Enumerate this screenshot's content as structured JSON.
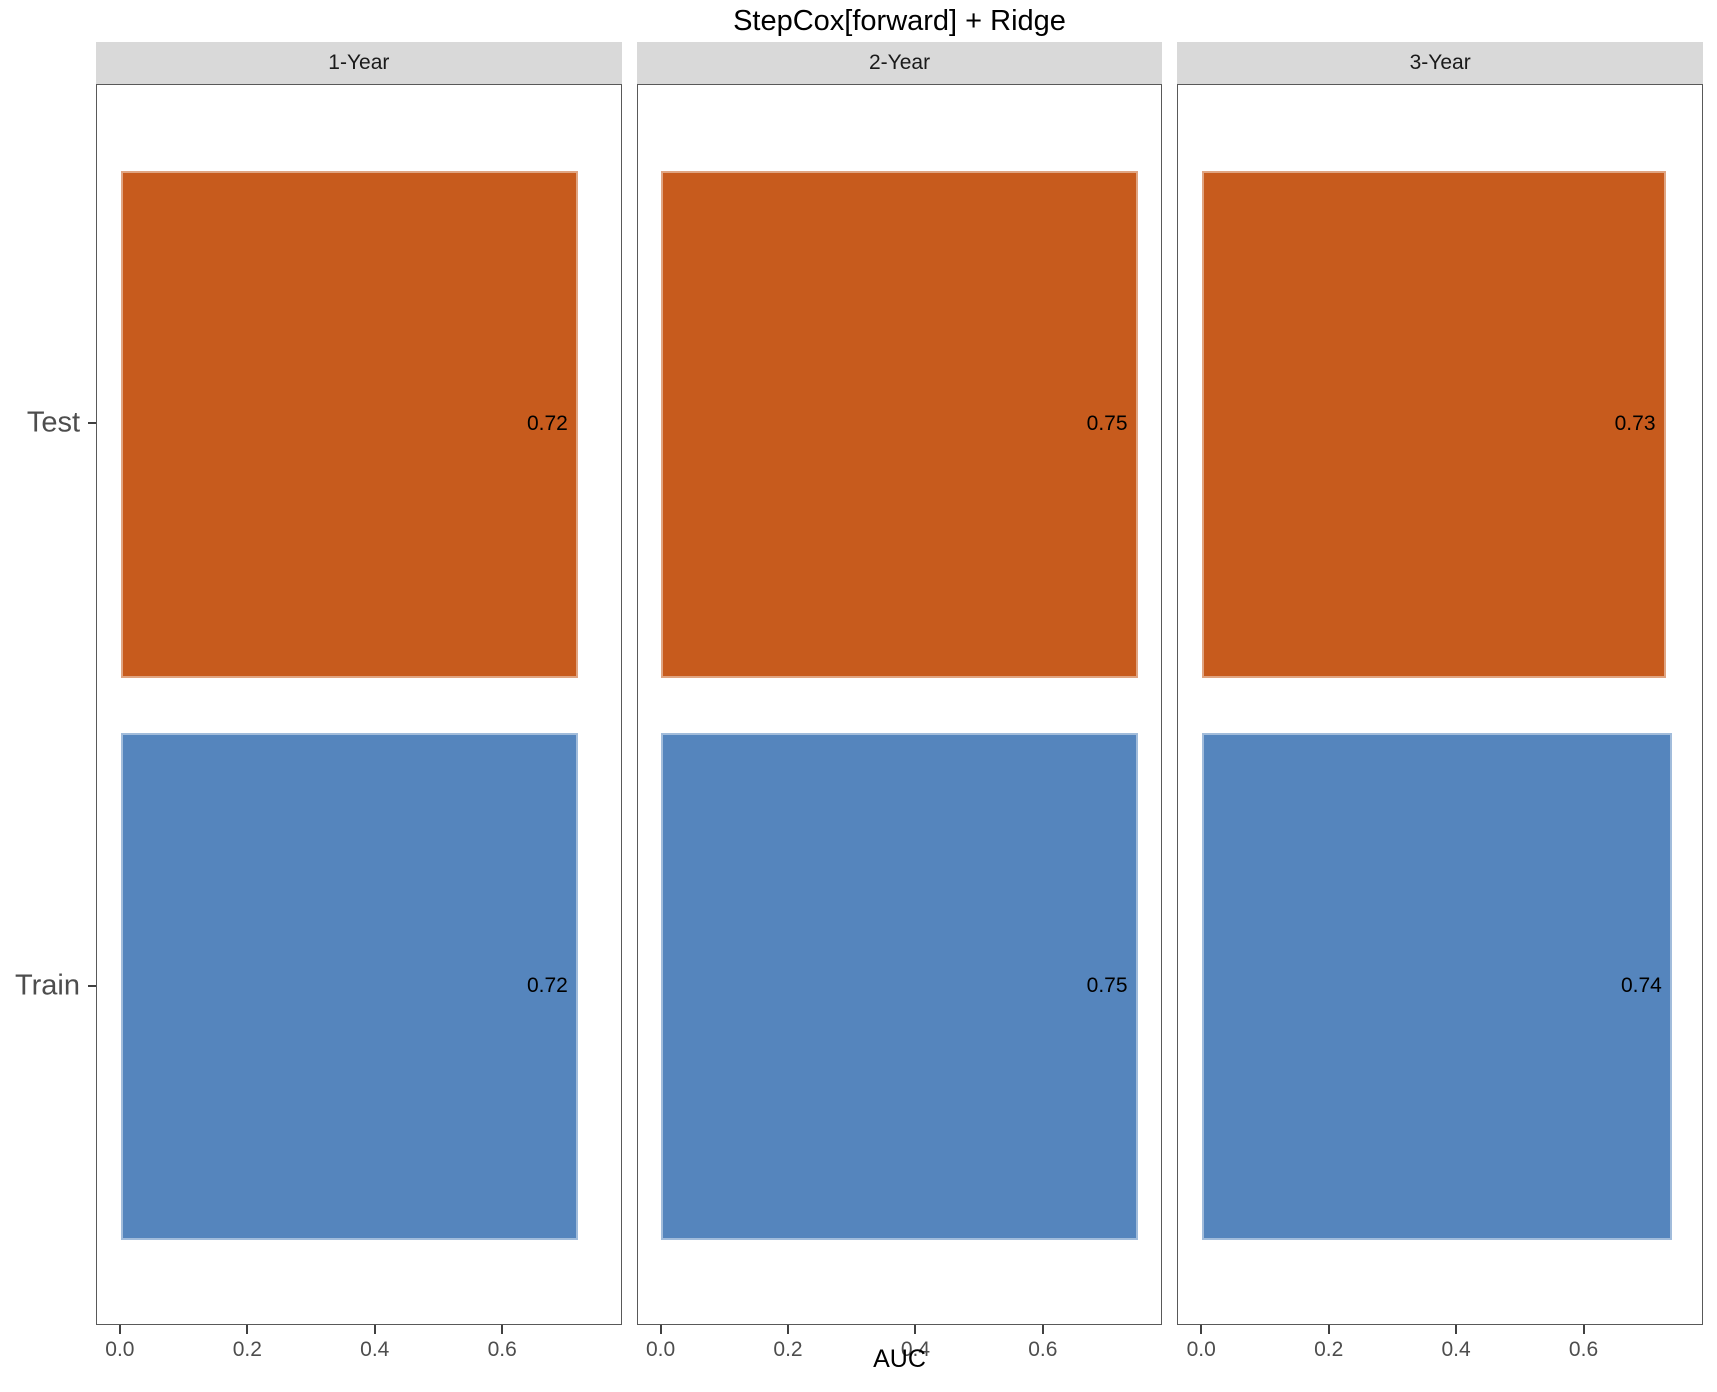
{
  "title": "StepCox[forward] + Ridge",
  "colors": {
    "test_bar": "#c75b1d",
    "train_bar": "#5585bd",
    "strip_background": "#d9d9d9",
    "panel_border": "#595959",
    "axis_text": "#4d4d4d",
    "value_label_text": "#000000"
  },
  "chart_data": {
    "type": "bar",
    "orientation": "horizontal",
    "title": "StepCox[forward] + Ridge",
    "xlabel": "AUC",
    "ylabel": "",
    "categories": [
      "Test",
      "Train"
    ],
    "series_colors": {
      "Test": "#c75b1d",
      "Train": "#5585bd"
    },
    "x_ticks": [
      {
        "value": 0.0,
        "label": "0.0"
      },
      {
        "value": 0.2,
        "label": "0.2"
      },
      {
        "value": 0.4,
        "label": "0.4"
      },
      {
        "value": 0.6,
        "label": "0.6"
      }
    ],
    "xlim": [
      0,
      0.75
    ],
    "x_view_min": -0.0375,
    "x_view_max": 0.7875,
    "grid": false,
    "legend": "none",
    "facets": [
      {
        "label": "1-Year",
        "bars": [
          {
            "category": "Test",
            "value": 0.72,
            "label": "0.72"
          },
          {
            "category": "Train",
            "value": 0.72,
            "label": "0.72"
          }
        ]
      },
      {
        "label": "2-Year",
        "bars": [
          {
            "category": "Test",
            "value": 0.75,
            "label": "0.75"
          },
          {
            "category": "Train",
            "value": 0.75,
            "label": "0.75"
          }
        ]
      },
      {
        "label": "3-Year",
        "bars": [
          {
            "category": "Test",
            "value": 0.73,
            "label": "0.73"
          },
          {
            "category": "Train",
            "value": 0.74,
            "label": "0.74"
          }
        ]
      }
    ]
  }
}
